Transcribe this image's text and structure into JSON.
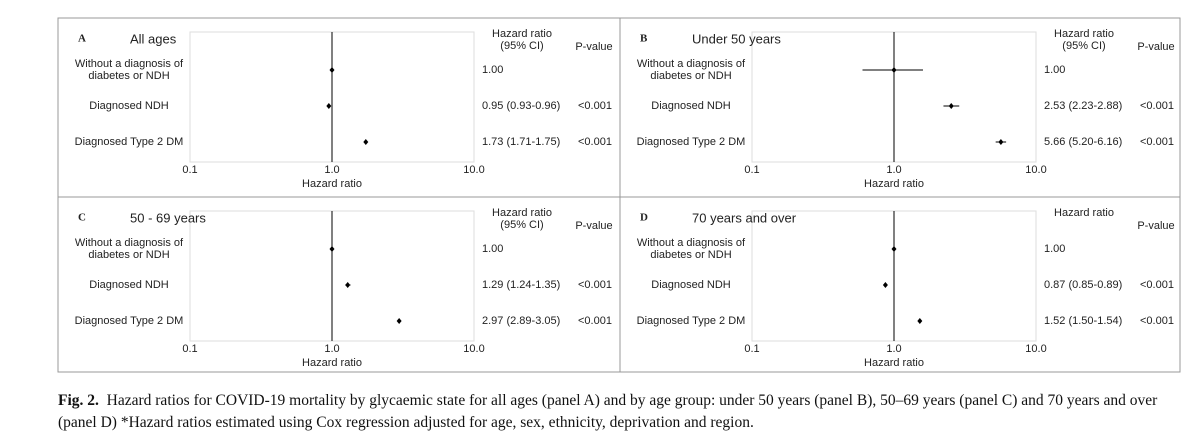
{
  "chart_data": [
    {
      "type": "forest",
      "panel": "A",
      "title": "All ages",
      "hr_header": [
        "Hazard ratio",
        "(95% CI)"
      ],
      "p_header": "P-value",
      "categories": [
        "Without a diagnosis of diabetes or NDH",
        "Diagnosed NDH",
        "Diagnosed Type 2 DM"
      ],
      "values": [
        1,
        0.95,
        1.73
      ],
      "ci_low": [
        null,
        0.93,
        1.71
      ],
      "ci_high": [
        null,
        0.96,
        1.75
      ],
      "value_labels": [
        "1.00",
        "0.95 (0.93-0.96)",
        "1.73 (1.71-1.75)"
      ],
      "p_values": [
        null,
        "<0.001",
        "<0.001"
      ],
      "xlabel": "Hazard ratio",
      "xlim": [
        0.1,
        10
      ],
      "xticks": [
        0.1,
        {
          "value": 1,
          "label": "1.0"
        },
        {
          "value": 10,
          "label": "10.0"
        }
      ],
      "xscale": "log",
      "reference_line": 1,
      "color": "#000000"
    },
    {
      "type": "forest",
      "panel": "B",
      "title": "Under 50 years",
      "hr_header": [
        "Hazard ratio",
        "(95% CI)"
      ],
      "p_header": "P-value",
      "categories": [
        "Without a diagnosis of diabetes or NDH",
        "Diagnosed NDH",
        "Diagnosed Type 2 DM"
      ],
      "values": [
        1,
        2.53,
        5.66
      ],
      "ci_low": [
        0.6,
        2.23,
        5.2
      ],
      "ci_high": [
        1.6,
        2.88,
        6.16
      ],
      "value_labels": [
        "1.00",
        "2.53 (2.23-2.88)",
        "5.66 (5.20-6.16)"
      ],
      "p_values": [
        null,
        "<0.001",
        "<0.001"
      ],
      "xlabel": "Hazard ratio",
      "xlim": [
        0.1,
        10
      ],
      "xticks": [
        0.1,
        {
          "value": 1,
          "label": "1.0"
        },
        {
          "value": 10,
          "label": "10.0"
        }
      ],
      "xscale": "log",
      "reference_line": 1,
      "color": "#000000"
    },
    {
      "type": "forest",
      "panel": "C",
      "title": "50 - 69 years",
      "hr_header": [
        "Hazard ratio",
        "(95% CI)"
      ],
      "p_header": "P-value",
      "categories": [
        "Without a diagnosis of diabetes or NDH",
        "Diagnosed NDH",
        "Diagnosed Type 2 DM"
      ],
      "values": [
        1,
        1.29,
        2.97
      ],
      "ci_low": [
        null,
        1.24,
        2.89
      ],
      "ci_high": [
        null,
        1.35,
        3.05
      ],
      "value_labels": [
        "1.00",
        "1.29 (1.24-1.35)",
        "2.97 (2.89-3.05)"
      ],
      "p_values": [
        null,
        "<0.001",
        "<0.001"
      ],
      "xlabel": "Hazard ratio",
      "xlim": [
        0.1,
        10
      ],
      "xticks": [
        0.1,
        {
          "value": 1,
          "label": "1.0"
        },
        {
          "value": 10,
          "label": "10.0"
        }
      ],
      "xscale": "log",
      "reference_line": 1,
      "color": "#000000"
    },
    {
      "type": "forest",
      "panel": "D",
      "title": "70 years and over",
      "hr_header": [
        "Hazard ratio"
      ],
      "p_header": "P-value",
      "categories": [
        "Without a diagnosis of diabetes or NDH",
        "Diagnosed NDH",
        "Diagnosed Type 2 DM"
      ],
      "values": [
        1,
        0.87,
        1.52
      ],
      "ci_low": [
        null,
        0.85,
        1.5
      ],
      "ci_high": [
        null,
        0.89,
        1.54
      ],
      "value_labels": [
        "1.00",
        "0.87 (0.85-0.89)",
        "1.52 (1.50-1.54)"
      ],
      "p_values": [
        null,
        "<0.001",
        "<0.001"
      ],
      "xlabel": "Hazard ratio",
      "xlim": [
        0.1,
        10
      ],
      "xticks": [
        0.1,
        {
          "value": 1,
          "label": "1.0"
        },
        {
          "value": 10,
          "label": "10.0"
        }
      ],
      "xscale": "log",
      "reference_line": 1,
      "color": "#000000"
    }
  ],
  "caption": {
    "label": "Fig. 2.",
    "text": "Hazard ratios for COVID-19 mortality by glycaemic state for all ages (panel A) and by age group: under 50 years (panel B), 50–69 years (panel C) and 70 years and over (panel D) *Hazard ratios estimated using Cox regression adjusted for age, sex, ethnicity, deprivation and region."
  }
}
